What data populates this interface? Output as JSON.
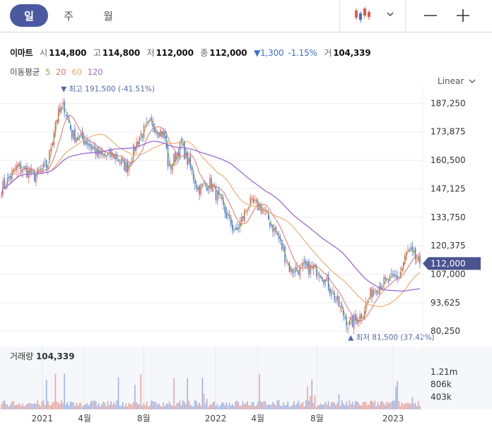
{
  "toolbar": {
    "tabs": [
      {
        "label": "일",
        "active": true
      },
      {
        "label": "주",
        "active": false
      },
      {
        "label": "월",
        "active": false
      }
    ],
    "icons": [
      "candlestick-chart-icon",
      "chevron-down-icon",
      "minus-icon",
      "plus-icon"
    ]
  },
  "quote": {
    "name": "이마트",
    "open_label": "시",
    "open": "114,800",
    "high_label": "고",
    "high": "114,800",
    "low_label": "저",
    "low": "112,000",
    "close_label": "종",
    "close": "112,000",
    "change": "▼1,300",
    "change_pct": "-1.15%",
    "volume_label": "거",
    "volume": "104,339"
  },
  "ma": {
    "label": "이동평균",
    "periods": [
      {
        "period": "5",
        "color": "#7cb342"
      },
      {
        "period": "20",
        "color": "#e57373"
      },
      {
        "period": "60",
        "color": "#f0a868"
      },
      {
        "period": "120",
        "color": "#9c6ad8"
      }
    ]
  },
  "scale_label": "Linear",
  "colors": {
    "up": "#e05a4e",
    "down": "#3f6fd6",
    "accent": "#4b5aa0",
    "annotation": "#5566aa",
    "vol_up": "#eaa59c",
    "vol_down": "#9db3e6"
  },
  "chart_data": {
    "type": "candlestick",
    "price_ticks": [
      "187,250",
      "173,875",
      "160,500",
      "147,125",
      "133,750",
      "120,375",
      "107,000",
      "93,625",
      "80,250"
    ],
    "price_tick_values": [
      187250,
      173875,
      160500,
      147125,
      133750,
      120375,
      107000,
      93625,
      80250
    ],
    "ylim": [
      76000,
      196000
    ],
    "current_price_label": "112,000",
    "current_price": 112000,
    "high_annotation": {
      "marker": "▼",
      "label": "최고",
      "value": "191,500",
      "pct": "(-41.51%)",
      "price": 191500
    },
    "low_annotation": {
      "marker": "▲",
      "label": "최저",
      "value": "81,500",
      "pct": "(37.42%)",
      "price": 81500
    },
    "x_labels": [
      "2021",
      "4월",
      "8월",
      "2022",
      "4월",
      "8월",
      "2023"
    ],
    "price_anchors": [
      {
        "t": 0,
        "v": 147000
      },
      {
        "t": 0.04,
        "v": 158000
      },
      {
        "t": 0.08,
        "v": 153000
      },
      {
        "t": 0.11,
        "v": 158000
      },
      {
        "t": 0.13,
        "v": 180000
      },
      {
        "t": 0.15,
        "v": 186000
      },
      {
        "t": 0.17,
        "v": 172000
      },
      {
        "t": 0.2,
        "v": 170000
      },
      {
        "t": 0.24,
        "v": 162000
      },
      {
        "t": 0.27,
        "v": 163000
      },
      {
        "t": 0.3,
        "v": 157000
      },
      {
        "t": 0.33,
        "v": 172000
      },
      {
        "t": 0.36,
        "v": 178000
      },
      {
        "t": 0.39,
        "v": 172000
      },
      {
        "t": 0.4,
        "v": 156000
      },
      {
        "t": 0.43,
        "v": 168000
      },
      {
        "t": 0.47,
        "v": 147000
      },
      {
        "t": 0.5,
        "v": 150000
      },
      {
        "t": 0.53,
        "v": 138000
      },
      {
        "t": 0.56,
        "v": 126000
      },
      {
        "t": 0.59,
        "v": 140000
      },
      {
        "t": 0.62,
        "v": 139000
      },
      {
        "t": 0.66,
        "v": 125000
      },
      {
        "t": 0.69,
        "v": 109000
      },
      {
        "t": 0.73,
        "v": 110000
      },
      {
        "t": 0.76,
        "v": 109000
      },
      {
        "t": 0.8,
        "v": 95000
      },
      {
        "t": 0.83,
        "v": 83000
      },
      {
        "t": 0.86,
        "v": 88000
      },
      {
        "t": 0.89,
        "v": 101000
      },
      {
        "t": 0.92,
        "v": 103000
      },
      {
        "t": 0.95,
        "v": 106000
      },
      {
        "t": 0.97,
        "v": 118000
      },
      {
        "t": 1.0,
        "v": 112000
      }
    ],
    "volume_panel": {
      "label": "거래량",
      "value": "104,339",
      "ticks": [
        "1.21m",
        "806k",
        "403k"
      ],
      "tick_values": [
        1210000,
        806000,
        403000
      ]
    }
  }
}
